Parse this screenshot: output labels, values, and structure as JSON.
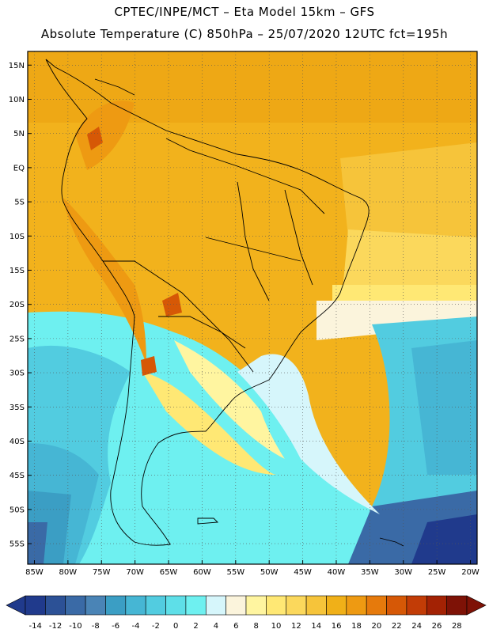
{
  "header": {
    "line1": "CPTEC/INPE/MCT –  Eta Model 15km – GFS",
    "line2": "Absolute Temperature (C) 850hPa – 25/07/2020 12UTC fct=195h"
  },
  "map": {
    "lon_range": [
      -86,
      -19
    ],
    "lat_range": [
      -58,
      17
    ],
    "lat_labels": [
      "15N",
      "10N",
      "5N",
      "EQ",
      "5S",
      "10S",
      "15S",
      "20S",
      "25S",
      "30S",
      "35S",
      "40S",
      "45S",
      "50S",
      "55S"
    ],
    "lat_values": [
      15,
      10,
      5,
      0,
      -5,
      -10,
      -15,
      -20,
      -25,
      -30,
      -35,
      -40,
      -45,
      -50,
      -55
    ],
    "lon_labels": [
      "85W",
      "80W",
      "75W",
      "70W",
      "65W",
      "60W",
      "55W",
      "50W",
      "45W",
      "40W",
      "35W",
      "30W",
      "25W",
      "20W"
    ],
    "lon_values": [
      -85,
      -80,
      -75,
      -70,
      -65,
      -60,
      -55,
      -50,
      -45,
      -40,
      -35,
      -30,
      -25,
      -20
    ],
    "grid": "dotted"
  },
  "colorbar": {
    "labels": [
      "-14",
      "-12",
      "-10",
      "-8",
      "-6",
      "-4",
      "-2",
      "0",
      "2",
      "4",
      "6",
      "8",
      "10",
      "12",
      "14",
      "16",
      "18",
      "20",
      "22",
      "24",
      "26",
      "28"
    ],
    "colors": [
      "#203a8c",
      "#2c5196",
      "#3a6aa6",
      "#4a84b6",
      "#3b9ec4",
      "#46b6d4",
      "#52cce0",
      "#5edfe8",
      "#6ef0f0",
      "#d6f6fb",
      "#fbf4dc",
      "#fff5a0",
      "#ffe874",
      "#fbd85c",
      "#f6c43a",
      "#f0b018",
      "#ee9a12",
      "#e67a0c",
      "#d65806",
      "#c23c06",
      "#a32204",
      "#7e1206"
    ]
  }
}
